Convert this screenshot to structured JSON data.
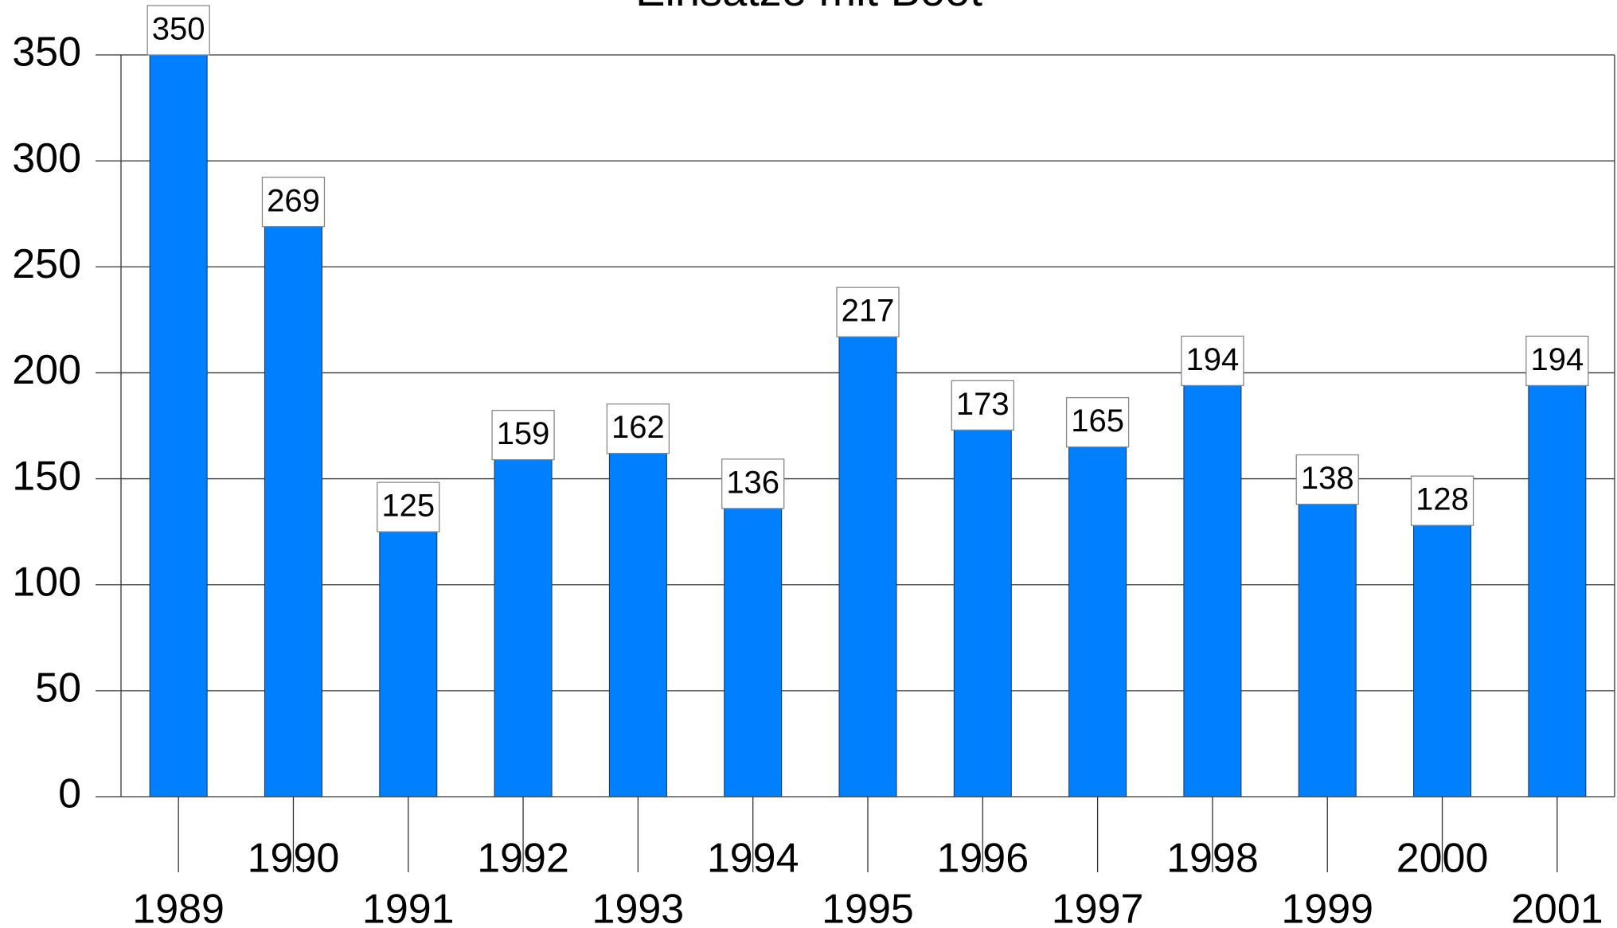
{
  "chart_data": {
    "type": "bar",
    "title": "Einsätze mit Boot",
    "categories": [
      "1989",
      "1990",
      "1991",
      "1992",
      "1993",
      "1994",
      "1995",
      "1996",
      "1997",
      "1998",
      "1999",
      "2000",
      "2001"
    ],
    "values": [
      350,
      269,
      125,
      159,
      162,
      136,
      217,
      173,
      165,
      194,
      138,
      128,
      194
    ],
    "color": "#007fff",
    "ylim": [
      0,
      350
    ],
    "yticks": [
      0,
      50,
      100,
      150,
      200,
      250,
      300,
      350
    ],
    "grid": true
  }
}
